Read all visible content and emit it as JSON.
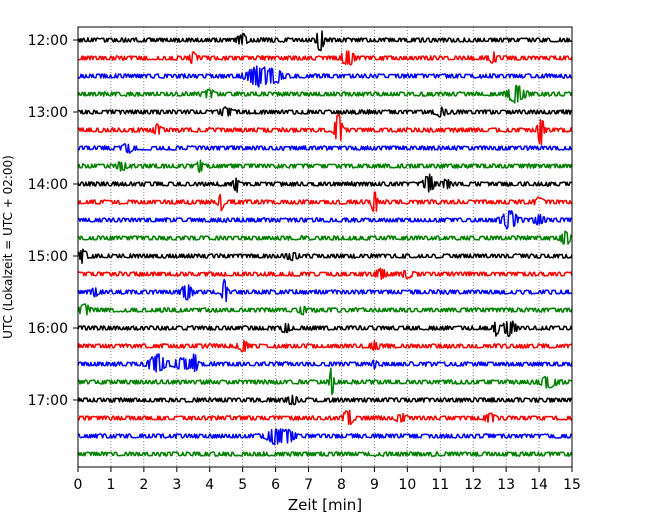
{
  "chart_data": {
    "type": "line",
    "title": "",
    "xlabel": "Zeit  [min]",
    "ylabel": "UTC (Lokalzeit = UTC + 02:00)",
    "xlim": [
      0,
      15
    ],
    "x_ticks": [
      "0",
      "1",
      "2",
      "3",
      "4",
      "5",
      "6",
      "7",
      "8",
      "9",
      "10",
      "11",
      "12",
      "13",
      "14",
      "15"
    ],
    "y_ticks": [
      "12:00",
      "13:00",
      "14:00",
      "15:00",
      "16:00",
      "17:00"
    ],
    "grid_x": true,
    "colors": [
      "#000000",
      "#ff0000",
      "#0000ff",
      "#008000"
    ],
    "series": [
      {
        "values": [
          [
            7.35,
            1.0,
            0.12
          ],
          [
            5.0,
            0.3,
            0.2
          ]
        ]
      },
      {
        "values": [
          [
            3.5,
            0.35,
            0.15
          ],
          [
            8.2,
            0.45,
            0.25
          ],
          [
            12.6,
            0.3,
            0.15
          ]
        ]
      },
      {
        "values": [
          [
            5.5,
            0.55,
            0.5
          ],
          [
            6.0,
            0.3,
            0.3
          ]
        ]
      },
      {
        "values": [
          [
            13.3,
            0.5,
            0.35
          ],
          [
            4.0,
            0.2,
            0.2
          ]
        ]
      },
      {
        "values": [
          [
            4.5,
            0.25,
            0.2
          ],
          [
            11.0,
            0.2,
            0.2
          ]
        ]
      },
      {
        "values": [
          [
            2.4,
            0.25,
            0.15
          ],
          [
            7.9,
            1.0,
            0.15
          ],
          [
            14.05,
            1.0,
            0.12
          ]
        ]
      },
      {
        "values": [
          [
            1.5,
            0.25,
            0.2
          ]
        ]
      },
      {
        "values": [
          [
            1.3,
            0.25,
            0.2
          ],
          [
            3.7,
            0.35,
            0.1
          ]
        ]
      },
      {
        "values": [
          [
            4.8,
            0.45,
            0.1
          ],
          [
            10.65,
            0.55,
            0.2
          ],
          [
            11.2,
            0.25,
            0.15
          ]
        ]
      },
      {
        "values": [
          [
            4.35,
            0.5,
            0.1
          ],
          [
            9.0,
            0.95,
            0.1
          ],
          [
            14.0,
            0.25,
            0.15
          ]
        ]
      },
      {
        "values": [
          [
            13.1,
            0.5,
            0.3
          ],
          [
            14.0,
            0.25,
            0.2
          ]
        ]
      },
      {
        "values": [
          [
            14.8,
            0.35,
            0.2
          ]
        ]
      },
      {
        "values": [
          [
            0.15,
            0.35,
            0.15
          ],
          [
            6.5,
            0.2,
            0.2
          ]
        ]
      },
      {
        "values": [
          [
            9.2,
            0.25,
            0.2
          ],
          [
            10.0,
            0.2,
            0.2
          ]
        ]
      },
      {
        "values": [
          [
            3.3,
            0.5,
            0.2
          ],
          [
            4.45,
            0.8,
            0.1
          ],
          [
            0.5,
            0.2,
            0.15
          ]
        ]
      },
      {
        "values": [
          [
            0.2,
            0.3,
            0.2
          ],
          [
            6.8,
            0.2,
            0.15
          ]
        ]
      },
      {
        "values": [
          [
            6.3,
            0.3,
            0.15
          ],
          [
            12.7,
            0.4,
            0.1
          ],
          [
            13.1,
            0.45,
            0.25
          ]
        ]
      },
      {
        "values": [
          [
            5.0,
            0.3,
            0.2
          ],
          [
            9.0,
            0.2,
            0.2
          ]
        ]
      },
      {
        "values": [
          [
            2.4,
            0.55,
            0.35
          ],
          [
            3.2,
            0.35,
            0.35
          ],
          [
            3.55,
            0.6,
            0.1
          ],
          [
            9.0,
            0.2,
            0.1
          ]
        ]
      },
      {
        "values": [
          [
            7.7,
            1.0,
            0.08
          ],
          [
            14.3,
            0.35,
            0.3
          ]
        ]
      },
      {
        "values": [
          [
            6.5,
            0.25,
            0.2
          ]
        ]
      },
      {
        "values": [
          [
            8.2,
            0.45,
            0.2
          ],
          [
            9.8,
            0.2,
            0.2
          ],
          [
            12.5,
            0.25,
            0.2
          ]
        ]
      },
      {
        "values": [
          [
            6.0,
            0.45,
            0.35
          ],
          [
            6.4,
            0.3,
            0.25
          ]
        ]
      }
    ],
    "n_traces": 24,
    "noise_level": 0.1
  }
}
